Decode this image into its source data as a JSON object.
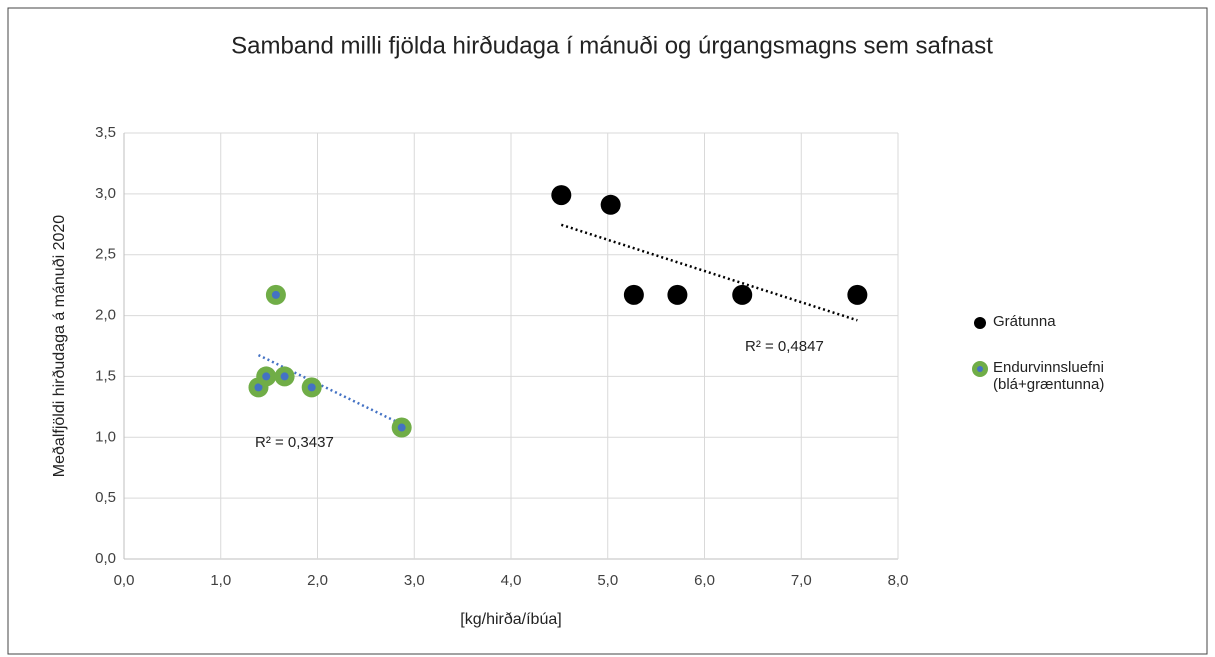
{
  "chart_data": {
    "type": "scatter",
    "title": "Samband milli fjölda hirðudaga í mánuði og úrgangsmagns sem safnast",
    "xlabel": "[kg/hirða/íbúa]",
    "ylabel": "Meðalfjöldi hirðudaga á mánuði 2020",
    "xlim": [
      0,
      8
    ],
    "ylim": [
      0,
      3.5
    ],
    "xticks": [
      {
        "value": 0,
        "label": "0,0"
      },
      {
        "value": 1,
        "label": "1,0"
      },
      {
        "value": 2,
        "label": "2,0"
      },
      {
        "value": 3,
        "label": "3,0"
      },
      {
        "value": 4,
        "label": "4,0"
      },
      {
        "value": 5,
        "label": "5,0"
      },
      {
        "value": 6,
        "label": "6,0"
      },
      {
        "value": 7,
        "label": "7,0"
      },
      {
        "value": 8,
        "label": "8,0"
      }
    ],
    "yticks": [
      {
        "value": 0,
        "label": "0,0"
      },
      {
        "value": 0.5,
        "label": "0,5"
      },
      {
        "value": 1,
        "label": "1,0"
      },
      {
        "value": 1.5,
        "label": "1,5"
      },
      {
        "value": 2,
        "label": "2,0"
      },
      {
        "value": 2.5,
        "label": "2,5"
      },
      {
        "value": 3,
        "label": "3,0"
      },
      {
        "value": 3.5,
        "label": "3,5"
      }
    ],
    "grid": true,
    "legend": "right",
    "series": [
      {
        "name": "Grátunna",
        "color": "#000000",
        "inner_color": "#000000",
        "trendline_color": "#000000",
        "x": [
          4.52,
          5.03,
          5.27,
          5.72,
          6.39,
          7.58
        ],
        "values": [
          2.99,
          2.91,
          2.17,
          2.17,
          2.17,
          2.17
        ]
      },
      {
        "name": "Endurvinnsluefni (blá+græntunna)",
        "color": "#70ad47",
        "inner_color": "#4472c4",
        "trendline_color": "#4472c4",
        "x": [
          1.39,
          1.47,
          1.57,
          1.66,
          1.94,
          2.87
        ],
        "values": [
          1.41,
          1.5,
          2.17,
          1.5,
          1.41,
          1.08
        ]
      }
    ],
    "annotations": [
      "R² = 0,4847",
      "R² = 0,3437"
    ]
  }
}
